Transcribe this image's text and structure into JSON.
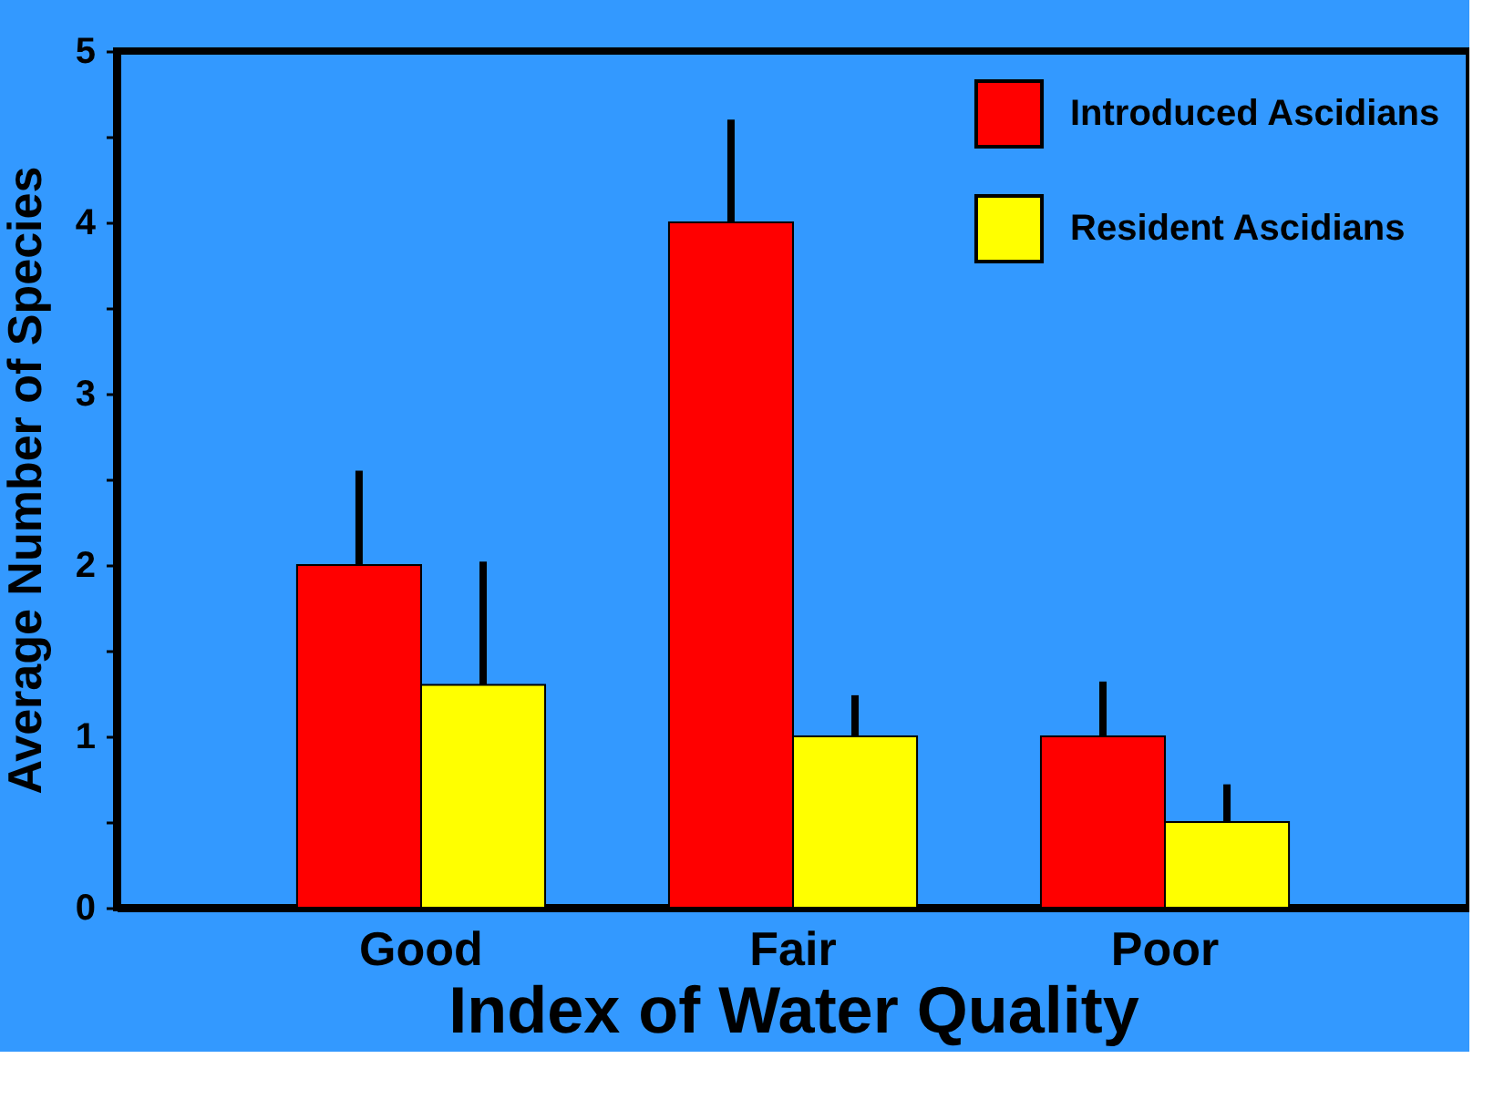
{
  "chart_data": {
    "type": "bar",
    "xlabel": "Index of Water Quality",
    "ylabel": "Average Number of Species",
    "categories": [
      "Good",
      "Fair",
      "Poor"
    ],
    "series": [
      {
        "name": "Introduced Ascidians",
        "color": "#ff0000",
        "values": [
          2.0,
          4.0,
          1.0
        ],
        "errors": [
          [
            2.0,
            2.55
          ],
          [
            4.0,
            4.6
          ],
          [
            1.0,
            1.32
          ]
        ]
      },
      {
        "name": "Resident Ascidians",
        "color": "#ffff00",
        "values": [
          1.3,
          1.0,
          0.5
        ],
        "errors": [
          [
            1.3,
            2.02
          ],
          [
            1.0,
            1.24
          ],
          [
            0.5,
            0.72
          ]
        ]
      }
    ],
    "ylim": [
      0,
      5
    ],
    "yticks": [
      0,
      {
        "value": 0.5,
        "label": null
      },
      1,
      {
        "value": 1.5,
        "label": null
      },
      2,
      {
        "value": 2.5,
        "label": null
      },
      3,
      {
        "value": 3.5,
        "label": null
      },
      4,
      {
        "value": 4.5,
        "label": null
      },
      5
    ],
    "legend": "top right",
    "grid": false
  }
}
